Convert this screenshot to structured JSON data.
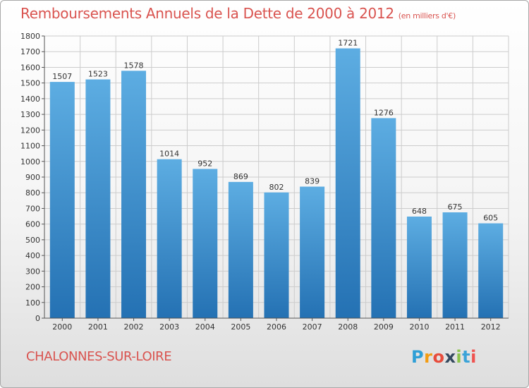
{
  "header": {
    "title": "Remboursements Annuels de la Dette de 2000 à 2012",
    "subtitle": "(en milliers d'€)"
  },
  "footer": {
    "town": "CHALONNES-SUR-LOIRE",
    "logo_letters": [
      "P",
      "r",
      "o",
      "x",
      "i",
      "t",
      "i"
    ]
  },
  "colors": {
    "title": "#d9534f",
    "bar_top": "#5dade2",
    "bar_bottom": "#2471b3",
    "grid": "#cccccc",
    "axis": "#555555"
  },
  "chart_data": {
    "type": "bar",
    "categories": [
      "2000",
      "2001",
      "2002",
      "2003",
      "2004",
      "2005",
      "2006",
      "2007",
      "2008",
      "2009",
      "2010",
      "2011",
      "2012"
    ],
    "values": [
      1507,
      1523,
      1578,
      1014,
      952,
      869,
      802,
      839,
      1721,
      1276,
      648,
      675,
      605
    ],
    "ylim": [
      0,
      1800
    ],
    "yticks": [
      0,
      100,
      200,
      300,
      400,
      500,
      600,
      700,
      800,
      900,
      1000,
      1100,
      1200,
      1300,
      1400,
      1500,
      1600,
      1700,
      1800
    ],
    "grid": true,
    "title": "Remboursements Annuels de la Dette de 2000 à 2012",
    "subtitle": "(en milliers d'€)"
  }
}
